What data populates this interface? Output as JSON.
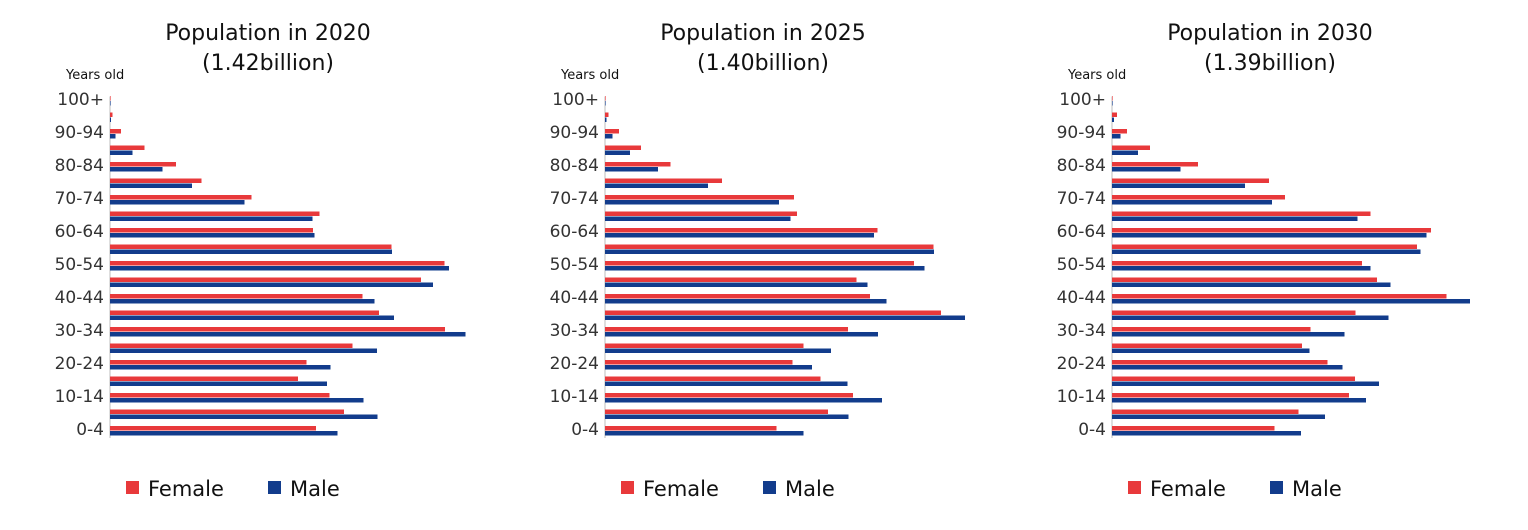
{
  "colors": {
    "female": "#e8393b",
    "male": "#123c8c",
    "axis": "#bdbdbd"
  },
  "chart_data": [
    {
      "type": "bar",
      "orientation": "horizontal",
      "title": "Population in 2020",
      "subtitle": "(1.42billion)",
      "ylabel": "Years old",
      "age_groups": [
        "0-4",
        "5-9",
        "10-14",
        "15-19",
        "20-24",
        "25-29",
        "30-34",
        "35-39",
        "40-44",
        "45-49",
        "50-54",
        "55-59",
        "60-64",
        "65-69",
        "70-74",
        "75-79",
        "80-84",
        "85-89",
        "90-94",
        "95-99",
        "100+"
      ],
      "tick_labels": [
        "0-4",
        "10-14",
        "20-24",
        "30-34",
        "40-44",
        "50-54",
        "60-64",
        "70-74",
        "80-84",
        "90-94",
        "100+"
      ],
      "series": [
        {
          "name": "Female",
          "values": [
            41.2,
            46.8,
            43.9,
            37.6,
            39.3,
            48.5,
            67.0,
            53.8,
            50.5,
            62.2,
            66.9,
            56.3,
            40.6,
            41.9,
            28.3,
            18.3,
            13.2,
            6.9,
            2.2,
            0.5,
            0.05
          ]
        },
        {
          "name": "Male",
          "values": [
            45.5,
            53.5,
            50.7,
            43.4,
            44.1,
            53.4,
            71.1,
            56.8,
            52.9,
            64.6,
            67.8,
            56.4,
            40.9,
            40.5,
            26.9,
            16.4,
            10.5,
            4.5,
            1.1,
            0.2,
            0.02
          ]
        }
      ],
      "xlim": [
        0,
        80
      ]
    },
    {
      "type": "bar",
      "orientation": "horizontal",
      "title": "Population in 2025",
      "subtitle": "(1.40billion)",
      "ylabel": "Years old",
      "age_groups": [
        "0-4",
        "5-9",
        "10-14",
        "15-19",
        "20-24",
        "25-29",
        "30-34",
        "35-39",
        "40-44",
        "45-49",
        "50-54",
        "55-59",
        "60-64",
        "65-69",
        "70-74",
        "75-79",
        "80-84",
        "85-89",
        "90-94",
        "95-99",
        "100+"
      ],
      "tick_labels": [
        "0-4",
        "10-14",
        "20-24",
        "30-34",
        "40-44",
        "50-54",
        "60-64",
        "70-74",
        "80-84",
        "90-94",
        "100+"
      ],
      "series": [
        {
          "name": "Female",
          "values": [
            34.3,
            44.6,
            49.6,
            43.1,
            37.5,
            39.7,
            48.6,
            67.2,
            53.0,
            50.3,
            61.8,
            65.7,
            54.5,
            38.4,
            37.8,
            23.4,
            13.1,
            7.2,
            2.8,
            0.7,
            0.08
          ]
        },
        {
          "name": "Male",
          "values": [
            39.7,
            48.7,
            55.4,
            48.5,
            41.4,
            45.2,
            54.6,
            72.0,
            56.3,
            52.5,
            63.9,
            65.8,
            53.8,
            37.1,
            34.8,
            20.6,
            10.6,
            5.0,
            1.5,
            0.3,
            0.03
          ]
        }
      ],
      "xlim": [
        0,
        80
      ]
    },
    {
      "type": "bar",
      "orientation": "horizontal",
      "title": "Population in 2030",
      "subtitle": "(1.39billion)",
      "ylabel": "Years old",
      "age_groups": [
        "0-4",
        "5-9",
        "10-14",
        "15-19",
        "20-24",
        "25-29",
        "30-34",
        "35-39",
        "40-44",
        "45-49",
        "50-54",
        "55-59",
        "60-64",
        "65-69",
        "70-74",
        "75-79",
        "80-84",
        "85-89",
        "90-94",
        "95-99",
        "100+"
      ],
      "tick_labels": [
        "0-4",
        "10-14",
        "20-24",
        "30-34",
        "40-44",
        "50-54",
        "60-64",
        "70-74",
        "80-84",
        "90-94",
        "100+"
      ],
      "series": [
        {
          "name": "Female",
          "values": [
            32.5,
            37.3,
            47.4,
            48.6,
            43.1,
            38.0,
            39.7,
            48.7,
            66.9,
            53.0,
            50.0,
            61.0,
            63.8,
            51.7,
            34.6,
            31.4,
            17.2,
            7.6,
            3.0,
            1.0,
            0.1
          ]
        },
        {
          "name": "Male",
          "values": [
            37.8,
            42.6,
            50.8,
            53.4,
            46.1,
            39.5,
            46.5,
            55.3,
            71.6,
            55.7,
            51.7,
            61.7,
            62.9,
            49.1,
            32.0,
            26.6,
            13.7,
            5.2,
            1.7,
            0.4,
            0.04
          ]
        }
      ],
      "xlim": [
        0,
        80
      ]
    }
  ]
}
